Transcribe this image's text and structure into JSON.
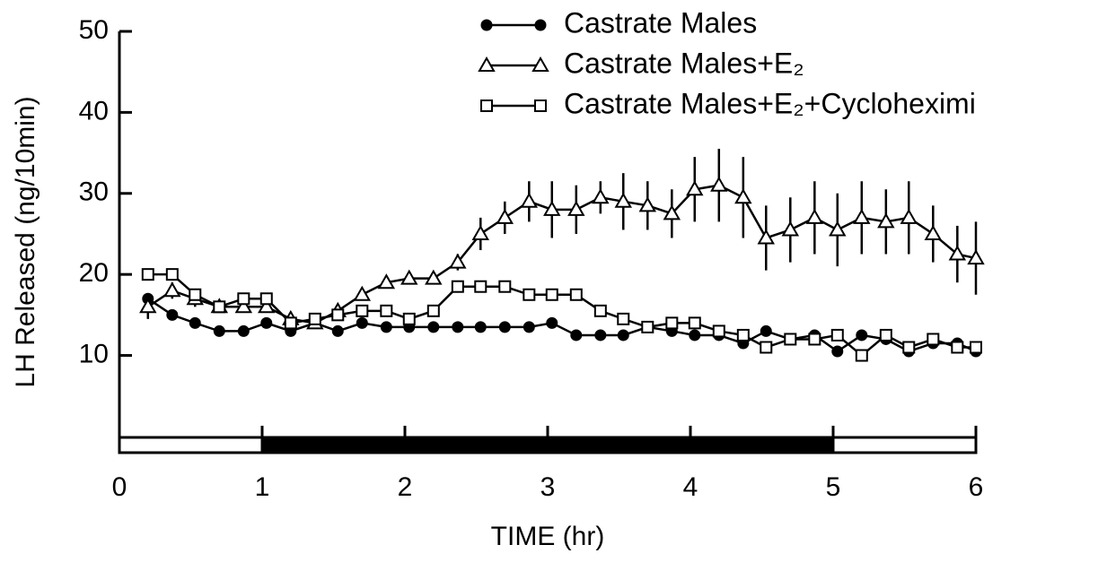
{
  "chart_data": {
    "type": "line",
    "xlabel": "TIME (hr)",
    "ylabel": "LH Released (ng/10min)",
    "xlim": [
      0,
      6
    ],
    "ylim": [
      -2,
      50
    ],
    "xticks": [
      0,
      1,
      2,
      3,
      4,
      5,
      6
    ],
    "yticks": [
      10,
      20,
      30,
      40,
      50
    ],
    "periods": [
      {
        "from": 0,
        "to": 1,
        "fill": "#ffffff"
      },
      {
        "from": 1,
        "to": 5,
        "fill": "#000000"
      },
      {
        "from": 5,
        "to": 6,
        "fill": "#ffffff"
      }
    ],
    "x": [
      0.2,
      0.37,
      0.53,
      0.7,
      0.87,
      1.03,
      1.2,
      1.37,
      1.53,
      1.7,
      1.87,
      2.03,
      2.2,
      2.37,
      2.53,
      2.7,
      2.87,
      3.03,
      3.2,
      3.37,
      3.53,
      3.7,
      3.87,
      4.03,
      4.2,
      4.37,
      4.53,
      4.7,
      4.87,
      5.03,
      5.2,
      5.37,
      5.53,
      5.7,
      5.87,
      6.0
    ],
    "series": [
      {
        "name": "Castrate Males",
        "color": "#000000",
        "marker": "circle",
        "filled": true,
        "values": [
          17,
          15,
          14,
          13,
          13,
          14,
          13,
          14,
          13,
          14,
          13.5,
          13.5,
          13.5,
          13.5,
          13.5,
          13.5,
          13.5,
          14,
          12.5,
          12.5,
          12.5,
          13.5,
          13,
          12.5,
          12.5,
          11.5,
          13,
          12,
          12.5,
          10.5,
          12.5,
          12,
          10.5,
          11.5,
          11.5,
          10.5
        ]
      },
      {
        "name": "Castrate Males+E₂",
        "color": "#000000",
        "marker": "triangle",
        "filled": false,
        "values": [
          16,
          18,
          17,
          16,
          16,
          16,
          14.5,
          14,
          15.5,
          17.5,
          19,
          19.5,
          19.5,
          21.5,
          25,
          27,
          29,
          28,
          28,
          29.5,
          29,
          28.5,
          27.5,
          30.5,
          31,
          29.5,
          24.5,
          25.5,
          27,
          25.5,
          27,
          26.5,
          27,
          25,
          22.5,
          22
        ],
        "errors": [
          1.5,
          1,
          1,
          0.5,
          0.5,
          0.5,
          0.5,
          0.5,
          0.5,
          0.5,
          0.5,
          0.5,
          0.5,
          1,
          2,
          2,
          2.5,
          3.5,
          3,
          2,
          3.5,
          3,
          3,
          4,
          4.5,
          5,
          4,
          4,
          4.5,
          4.5,
          4.5,
          4,
          4.5,
          3.5,
          3.5,
          4.5
        ]
      },
      {
        "name": "Castrate Males+E₂+Cycloheximi",
        "color": "#000000",
        "marker": "square",
        "filled": false,
        "values": [
          20,
          20,
          17.5,
          16,
          17,
          17,
          14,
          14.5,
          15,
          15.5,
          15.5,
          14.5,
          15.5,
          18.5,
          18.5,
          18.5,
          17.5,
          17.5,
          17.5,
          15.5,
          14.5,
          13.5,
          14,
          14,
          13,
          12.5,
          11,
          12,
          12,
          12.5,
          10,
          12.5,
          11,
          12,
          11,
          11
        ]
      }
    ]
  }
}
